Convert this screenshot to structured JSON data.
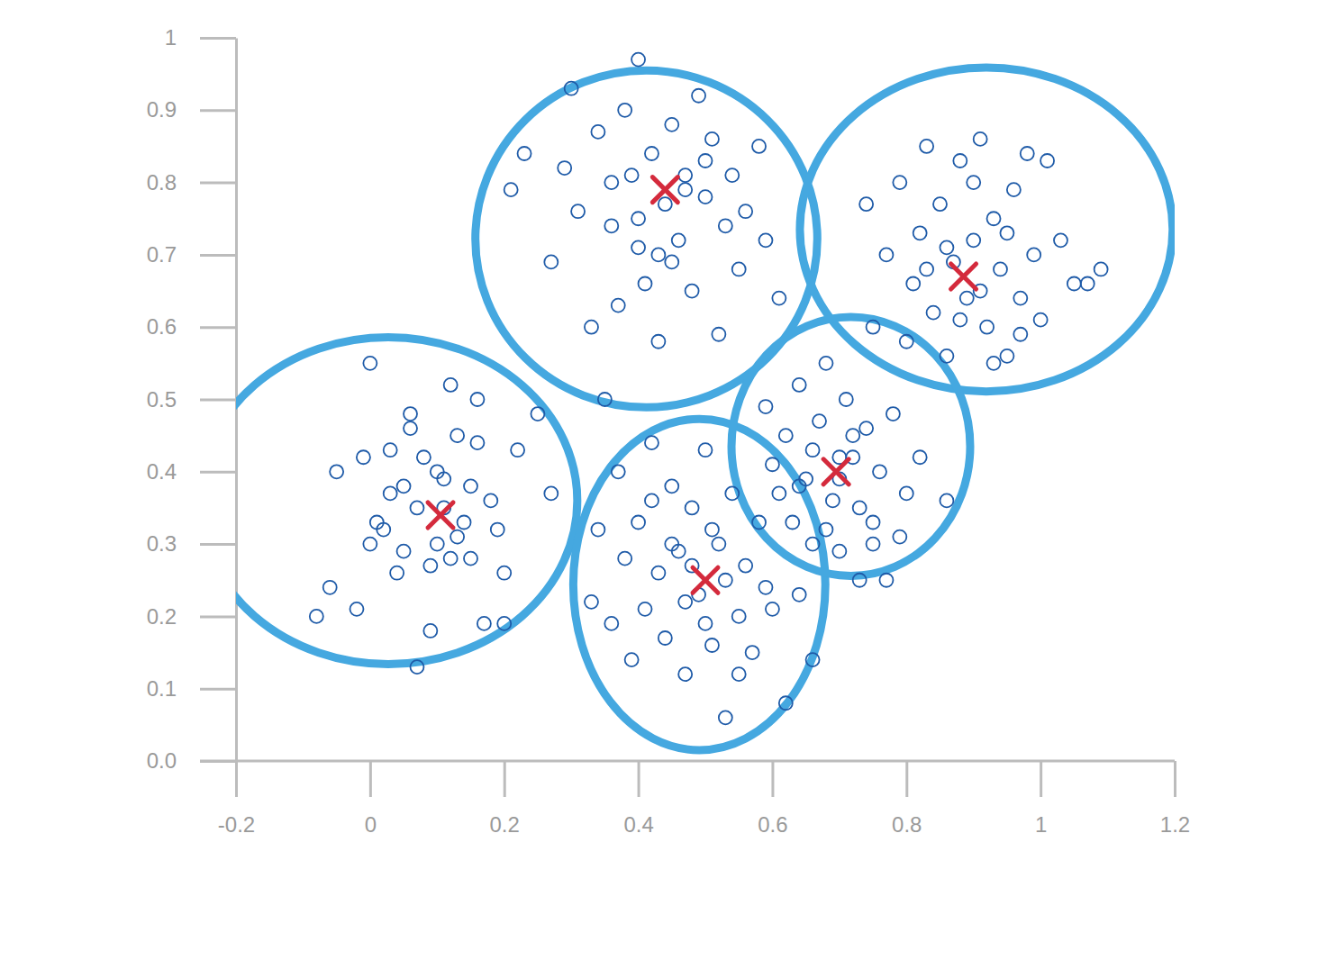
{
  "chart_data": {
    "type": "scatter",
    "xlim": [
      -0.2,
      1.2
    ],
    "ylim": [
      0,
      1
    ],
    "xticks": [
      -0.2,
      0,
      0.2,
      0.4,
      0.6,
      0.8,
      1,
      1.2
    ],
    "yticks": [
      {
        "value": 0,
        "label": "0.0"
      },
      0.1,
      0.2,
      0.3,
      0.4,
      0.5,
      0.6,
      0.7,
      0.8,
      0.9,
      1
    ],
    "grid": false,
    "series": [
      {
        "type": "scatter",
        "marker": "circle",
        "color": "#1f5ba8",
        "x": [
          -0.08,
          0.0,
          -0.05,
          -0.02,
          0.0,
          0.02,
          0.03,
          0.05,
          0.06,
          0.07,
          0.08,
          0.09,
          0.1,
          0.11,
          0.12,
          0.13,
          0.14,
          0.15,
          0.16,
          0.17,
          0.18,
          0.2,
          0.22,
          0.25,
          0.27,
          0.04,
          0.06,
          0.1,
          0.13,
          0.15,
          0.07,
          0.12,
          0.19,
          0.2,
          -0.01,
          0.01,
          0.09,
          0.16,
          0.05,
          0.03,
          -0.06,
          0.11
        ],
        "values": [
          0.2,
          0.55,
          0.4,
          0.21,
          0.3,
          0.32,
          0.43,
          0.38,
          0.48,
          0.13,
          0.42,
          0.27,
          0.3,
          0.35,
          0.52,
          0.45,
          0.33,
          0.28,
          0.5,
          0.19,
          0.36,
          0.19,
          0.43,
          0.48,
          0.37,
          0.26,
          0.46,
          0.4,
          0.31,
          0.38,
          0.35,
          0.28,
          0.32,
          0.26,
          0.42,
          0.33,
          0.18,
          0.44,
          0.29,
          0.37,
          0.24,
          0.39
        ]
      },
      {
        "type": "scatter",
        "marker": "circle",
        "color": "#1f5ba8",
        "x": [
          0.21,
          0.23,
          0.27,
          0.29,
          0.3,
          0.31,
          0.33,
          0.34,
          0.35,
          0.36,
          0.37,
          0.38,
          0.39,
          0.4,
          0.4,
          0.41,
          0.42,
          0.43,
          0.44,
          0.45,
          0.46,
          0.47,
          0.48,
          0.49,
          0.5,
          0.51,
          0.52,
          0.53,
          0.54,
          0.55,
          0.56,
          0.58,
          0.59,
          0.61,
          0.36,
          0.43,
          0.47,
          0.5,
          0.4,
          0.45
        ],
        "values": [
          0.79,
          0.84,
          0.69,
          0.82,
          0.93,
          0.76,
          0.6,
          0.87,
          0.5,
          0.74,
          0.63,
          0.9,
          0.81,
          0.97,
          0.71,
          0.66,
          0.84,
          0.58,
          0.77,
          0.88,
          0.72,
          0.81,
          0.65,
          0.92,
          0.78,
          0.86,
          0.59,
          0.74,
          0.81,
          0.68,
          0.76,
          0.85,
          0.72,
          0.64,
          0.8,
          0.7,
          0.79,
          0.83,
          0.75,
          0.69
        ]
      },
      {
        "type": "scatter",
        "marker": "circle",
        "color": "#1f5ba8",
        "x": [
          0.74,
          0.75,
          0.77,
          0.79,
          0.8,
          0.81,
          0.82,
          0.83,
          0.84,
          0.85,
          0.86,
          0.87,
          0.88,
          0.89,
          0.9,
          0.91,
          0.92,
          0.93,
          0.94,
          0.95,
          0.96,
          0.97,
          0.98,
          0.99,
          1.0,
          1.01,
          1.03,
          1.05,
          1.07,
          1.09,
          0.86,
          0.9,
          0.93,
          0.88,
          0.95,
          0.83,
          0.91,
          0.97
        ],
        "values": [
          0.77,
          0.6,
          0.7,
          0.8,
          0.58,
          0.66,
          0.73,
          0.85,
          0.62,
          0.77,
          0.56,
          0.69,
          0.83,
          0.64,
          0.72,
          0.86,
          0.6,
          0.75,
          0.68,
          0.56,
          0.79,
          0.64,
          0.84,
          0.7,
          0.61,
          0.83,
          0.72,
          0.66,
          0.66,
          0.68,
          0.71,
          0.8,
          0.55,
          0.61,
          0.73,
          0.68,
          0.65,
          0.59
        ]
      },
      {
        "type": "scatter",
        "marker": "circle",
        "color": "#1f5ba8",
        "x": [
          0.33,
          0.34,
          0.36,
          0.37,
          0.38,
          0.39,
          0.4,
          0.41,
          0.42,
          0.43,
          0.44,
          0.45,
          0.46,
          0.47,
          0.48,
          0.49,
          0.5,
          0.51,
          0.52,
          0.53,
          0.54,
          0.55,
          0.56,
          0.57,
          0.58,
          0.59,
          0.6,
          0.62,
          0.64,
          0.66,
          0.45,
          0.5,
          0.53,
          0.48,
          0.42,
          0.55,
          0.47,
          0.51
        ],
        "values": [
          0.22,
          0.32,
          0.19,
          0.4,
          0.28,
          0.14,
          0.33,
          0.21,
          0.44,
          0.26,
          0.17,
          0.38,
          0.29,
          0.12,
          0.35,
          0.23,
          0.43,
          0.16,
          0.3,
          0.06,
          0.37,
          0.2,
          0.27,
          0.15,
          0.33,
          0.24,
          0.21,
          0.08,
          0.23,
          0.14,
          0.3,
          0.19,
          0.25,
          0.27,
          0.36,
          0.12,
          0.22,
          0.32
        ]
      },
      {
        "type": "scatter",
        "marker": "circle",
        "color": "#1f5ba8",
        "x": [
          0.59,
          0.6,
          0.61,
          0.62,
          0.63,
          0.64,
          0.65,
          0.66,
          0.67,
          0.68,
          0.69,
          0.7,
          0.71,
          0.72,
          0.73,
          0.74,
          0.75,
          0.76,
          0.77,
          0.78,
          0.79,
          0.8,
          0.82,
          0.86,
          0.66,
          0.7,
          0.73,
          0.68,
          0.72,
          0.75,
          0.64,
          0.7
        ],
        "values": [
          0.49,
          0.41,
          0.37,
          0.45,
          0.33,
          0.52,
          0.39,
          0.3,
          0.47,
          0.55,
          0.36,
          0.29,
          0.5,
          0.42,
          0.25,
          0.46,
          0.33,
          0.4,
          0.25,
          0.48,
          0.31,
          0.37,
          0.42,
          0.36,
          0.43,
          0.39,
          0.35,
          0.32,
          0.45,
          0.3,
          0.38,
          0.42
        ]
      },
      {
        "type": "scatter",
        "marker": "x",
        "color": "#d42a3c",
        "x": [
          0.105,
          0.44,
          0.885,
          0.5,
          0.695
        ],
        "values": [
          0.34,
          0.79,
          0.67,
          0.25,
          0.4
        ]
      },
      {
        "type": "ellipse",
        "color": "#45a8e0",
        "x": [
          0.027,
          0.412,
          0.919,
          0.491,
          0.717
        ],
        "values": [
          0.36,
          0.722,
          0.735,
          0.244,
          0.435
        ],
        "rx": [
          0.282,
          0.255,
          0.278,
          0.188,
          0.178
        ],
        "ry": [
          0.226,
          0.233,
          0.224,
          0.229,
          0.179
        ]
      }
    ]
  }
}
